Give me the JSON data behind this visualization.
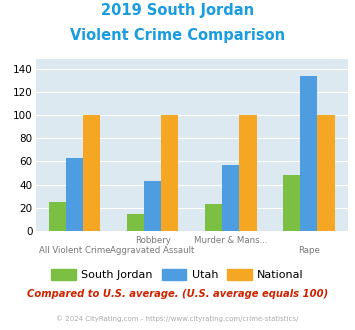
{
  "title_line1": "2019 South Jordan",
  "title_line2": "Violent Crime Comparison",
  "title_color": "#1a9ce0",
  "south_jordan": [
    25,
    15,
    23,
    48
  ],
  "utah": [
    63,
    43,
    57,
    134
  ],
  "national": [
    100,
    100,
    100,
    100
  ],
  "south_jordan_color": "#7bc043",
  "utah_color": "#4e9de0",
  "national_color": "#f5a623",
  "ylim": [
    0,
    148
  ],
  "yticks": [
    0,
    20,
    40,
    60,
    80,
    100,
    120,
    140
  ],
  "plot_bg": "#dce9f0",
  "grid_color": "#ffffff",
  "footnote": "Compared to U.S. average. (U.S. average equals 100)",
  "footnote_color": "#cc2200",
  "copyright_text": "© 2024 CityRating.com - https://www.cityrating.com/crime-statistics/",
  "copyright_color": "#aaaaaa",
  "legend_labels": [
    "South Jordan",
    "Utah",
    "National"
  ],
  "cat_top": [
    "",
    "Robbery",
    "Murder & Mans...",
    ""
  ],
  "cat_bot": [
    "All Violent Crime",
    "Aggravated Assault",
    "",
    "Rape"
  ]
}
